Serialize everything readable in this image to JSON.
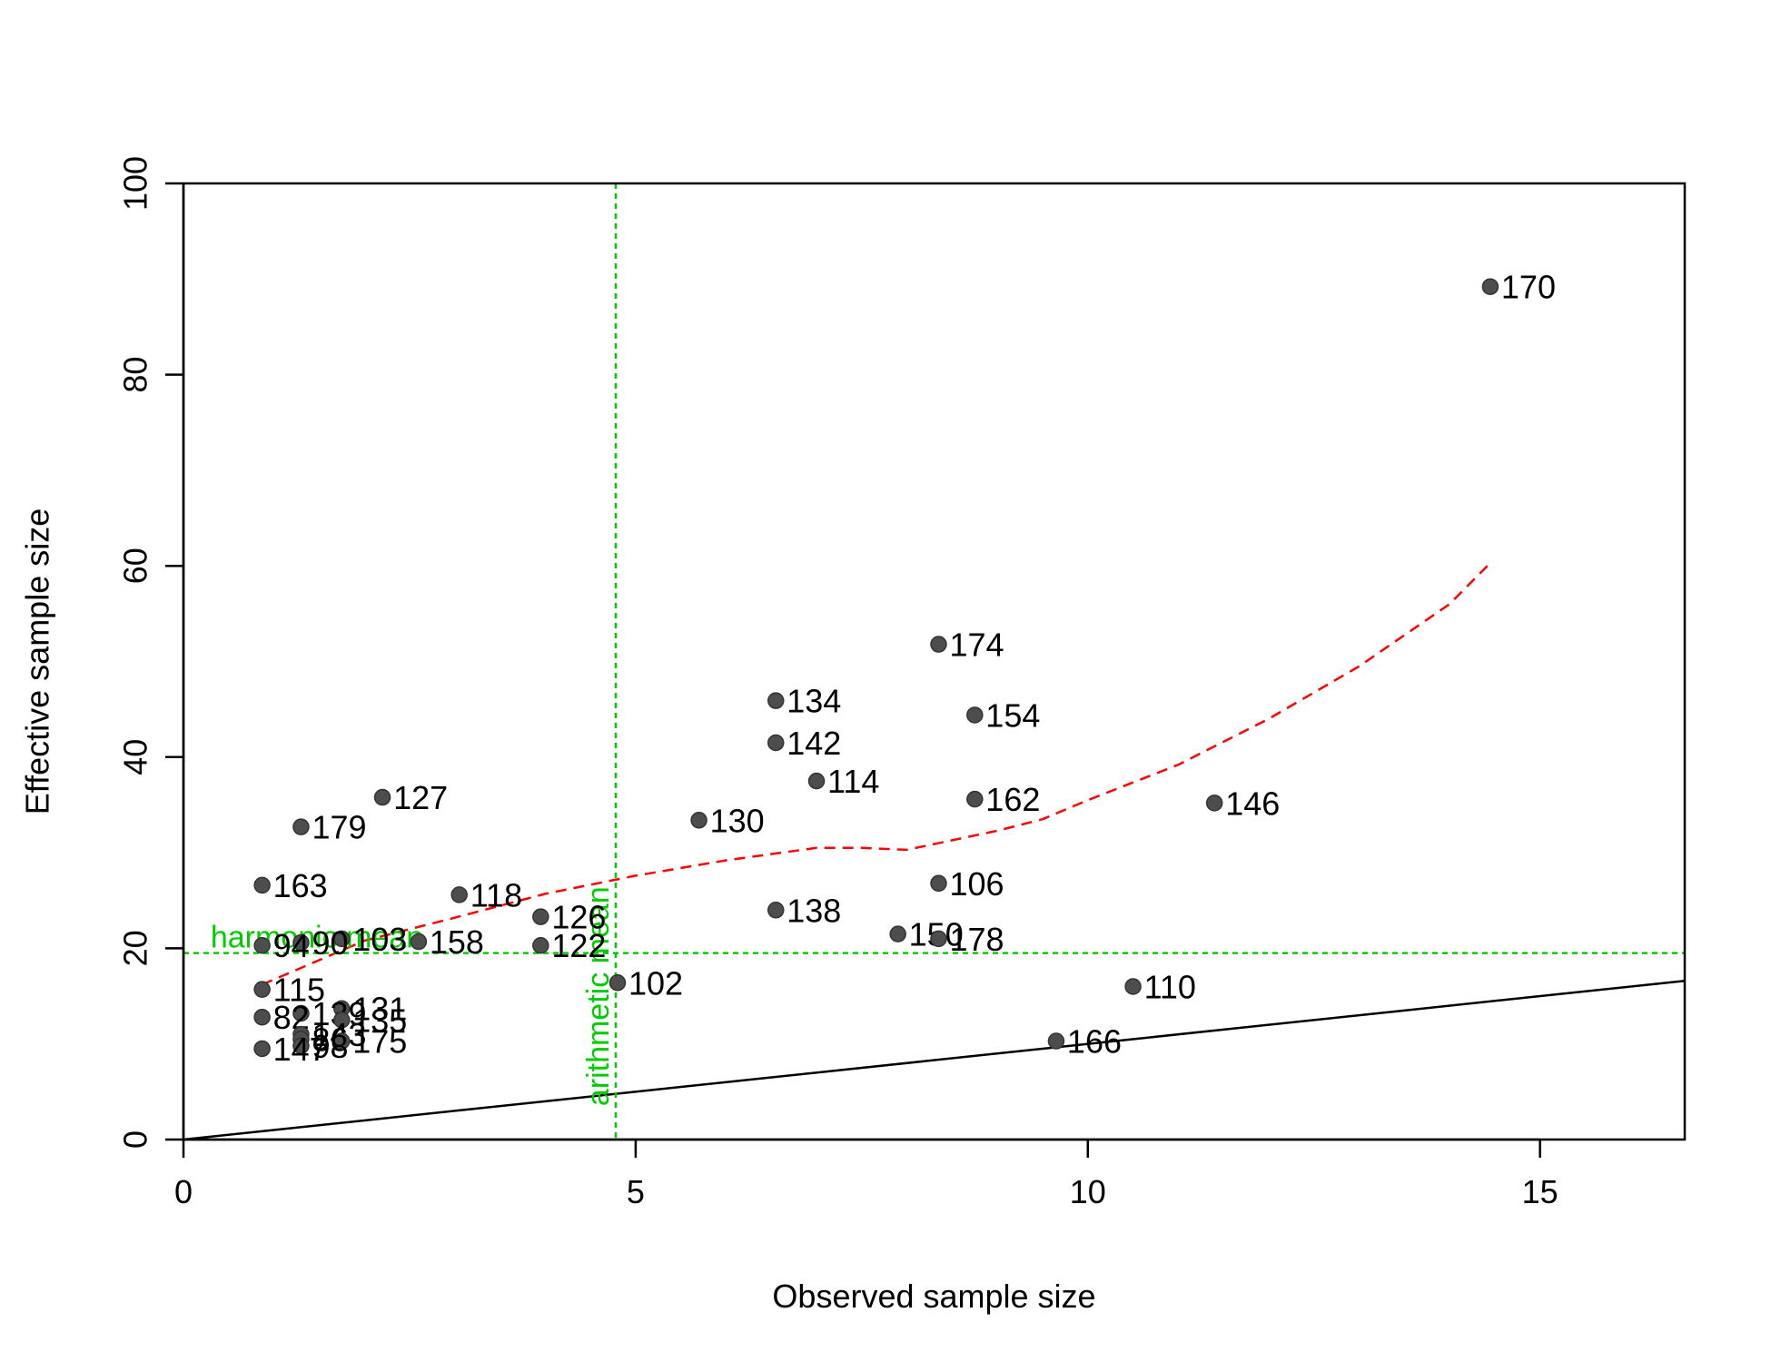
{
  "chart_data": {
    "type": "scatter",
    "xlabel": "Observed sample size",
    "ylabel": "Effective sample size",
    "xlim": [
      0,
      16.6
    ],
    "ylim": [
      0,
      100
    ],
    "x_ticks": [
      0,
      5,
      10,
      15
    ],
    "y_ticks": [
      0,
      20,
      40,
      60,
      80,
      100
    ],
    "x_tick_labels": [
      "0",
      "5",
      "10",
      "15"
    ],
    "y_tick_labels": [
      "0",
      "20",
      "40",
      "60",
      "80",
      "100"
    ],
    "grid": false,
    "point_color": "#4d4d4d",
    "points": [
      {
        "label": "170",
        "x": 14.45,
        "y": 89.2
      },
      {
        "label": "174",
        "x": 8.35,
        "y": 51.8
      },
      {
        "label": "134",
        "x": 6.55,
        "y": 45.9
      },
      {
        "label": "154",
        "x": 8.75,
        "y": 44.4
      },
      {
        "label": "142",
        "x": 6.55,
        "y": 41.5
      },
      {
        "label": "114",
        "x": 7.0,
        "y": 37.5
      },
      {
        "label": "127",
        "x": 2.2,
        "y": 35.8
      },
      {
        "label": "162",
        "x": 8.75,
        "y": 35.6
      },
      {
        "label": "146",
        "x": 11.4,
        "y": 35.2
      },
      {
        "label": "130",
        "x": 5.7,
        "y": 33.4
      },
      {
        "label": "179",
        "x": 1.3,
        "y": 32.7
      },
      {
        "label": "106",
        "x": 8.35,
        "y": 26.8
      },
      {
        "label": "163",
        "x": 0.87,
        "y": 26.6
      },
      {
        "label": "118",
        "x": 3.05,
        "y": 25.6
      },
      {
        "label": "138",
        "x": 6.55,
        "y": 24.0
      },
      {
        "label": "126",
        "x": 3.95,
        "y": 23.3
      },
      {
        "label": "150",
        "x": 7.9,
        "y": 21.5
      },
      {
        "label": "178",
        "x": 8.35,
        "y": 21.0
      },
      {
        "label": "103",
        "x": 1.75,
        "y": 21.0
      },
      {
        "label": "158",
        "x": 2.6,
        "y": 20.7
      },
      {
        "label": "90",
        "x": 1.3,
        "y": 20.6
      },
      {
        "label": "94",
        "x": 0.87,
        "y": 20.3
      },
      {
        "label": "122",
        "x": 3.95,
        "y": 20.3
      },
      {
        "label": "102",
        "x": 4.8,
        "y": 16.4
      },
      {
        "label": "110",
        "x": 10.5,
        "y": 16.0
      },
      {
        "label": "115",
        "x": 0.87,
        "y": 15.7
      },
      {
        "label": "131",
        "x": 1.75,
        "y": 13.7
      },
      {
        "label": "139",
        "x": 1.3,
        "y": 13.2
      },
      {
        "label": "82",
        "x": 0.87,
        "y": 12.8
      },
      {
        "label": "135",
        "x": 1.75,
        "y": 12.5
      },
      {
        "label": "143",
        "x": 1.3,
        "y": 11.0
      },
      {
        "label": "86",
        "x": 1.3,
        "y": 10.5
      },
      {
        "label": "175",
        "x": 1.75,
        "y": 10.3
      },
      {
        "label": "166",
        "x": 9.65,
        "y": 10.3
      },
      {
        "label": "98",
        "x": 1.3,
        "y": 9.8
      },
      {
        "label": "147",
        "x": 0.87,
        "y": 9.5
      }
    ],
    "identity_line": {
      "from": [
        0,
        0
      ],
      "to": [
        16.6,
        16.6
      ],
      "color": "#000000"
    },
    "smooth_line": {
      "color": "#ff0000",
      "x": [
        0.87,
        2,
        3,
        4,
        5,
        6,
        7,
        7.5,
        8,
        9,
        9.5,
        10,
        11,
        12,
        13,
        14,
        14.45
      ],
      "y": [
        16.2,
        20.8,
        23.2,
        25.7,
        27.6,
        29.2,
        30.5,
        30.5,
        30.3,
        32.3,
        33.5,
        35.5,
        39.2,
        44.0,
        49.5,
        56.0,
        60.3
      ]
    },
    "reference_lines": [
      {
        "orientation": "horizontal",
        "value": 19.5,
        "label": "harmonic mean",
        "color": "#00cc00"
      },
      {
        "orientation": "vertical",
        "value": 4.78,
        "label": "arithmetic mean",
        "color": "#00cc00"
      }
    ]
  }
}
